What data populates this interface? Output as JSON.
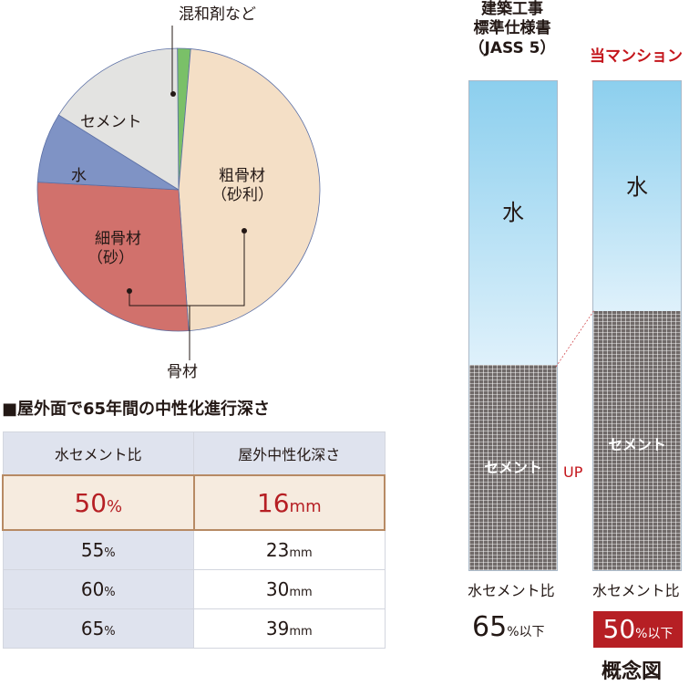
{
  "pie": {
    "segments": [
      {
        "label": "混和剤など",
        "color": "#7ac068",
        "value": 1.5
      },
      {
        "label": "粗骨材（砂利）",
        "color": "#f4dfc6",
        "value": 47.5
      },
      {
        "label": "細骨材（砂）",
        "color": "#d1716c",
        "value": 27
      },
      {
        "label": "水",
        "color": "#7f93c5",
        "value": 8
      },
      {
        "label": "セメント",
        "color": "#e3e3e1",
        "value": 16
      }
    ],
    "labels": {
      "admix": "混和剤など",
      "coarse_line1": "粗骨材",
      "coarse_line2": "（砂利）",
      "fine_line1": "細骨材",
      "fine_line2": "（砂）",
      "water": "水",
      "cement": "セメント",
      "aggregate": "骨材"
    }
  },
  "table": {
    "title": "■屋外面で65年間の中性化進行深さ",
    "headers": [
      "水セメント比",
      "屋外中性化深さ"
    ],
    "highlight": {
      "ratio": "50",
      "ratio_unit": "%",
      "depth": "16",
      "depth_unit": "mm"
    },
    "rows": [
      {
        "ratio": "55",
        "ratio_unit": "%",
        "depth": "23",
        "depth_unit": "mm"
      },
      {
        "ratio": "60",
        "ratio_unit": "%",
        "depth": "30",
        "depth_unit": "mm"
      },
      {
        "ratio": "65",
        "ratio_unit": "%",
        "depth": "39",
        "depth_unit": "mm"
      }
    ]
  },
  "comparison": {
    "left": {
      "head_line1": "建築工事",
      "head_line2": "標準仕様書",
      "head_line3": "（JASS 5）",
      "water": "水",
      "cement": "セメント",
      "ratio_label": "水セメント比",
      "ratio_value": "65",
      "ratio_suffix": "%以下",
      "cement_fraction": 0.42
    },
    "right": {
      "head": "当マンション",
      "water": "水",
      "cement": "セメント",
      "ratio_label": "水セメント比",
      "ratio_value": "50",
      "ratio_suffix": "%以下",
      "cement_fraction": 0.53
    },
    "up_label": "UP",
    "note": "概念図",
    "accent": "#c4161c"
  }
}
